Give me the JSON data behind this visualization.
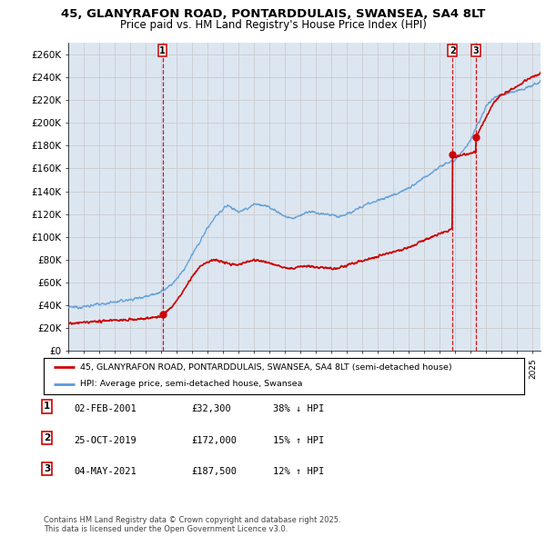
{
  "title_line1": "45, GLANYRAFON ROAD, PONTARDDULAIS, SWANSEA, SA4 8LT",
  "title_line2": "Price paid vs. HM Land Registry's House Price Index (HPI)",
  "ylabel_ticks": [
    "£0",
    "£20K",
    "£40K",
    "£60K",
    "£80K",
    "£100K",
    "£120K",
    "£140K",
    "£160K",
    "£180K",
    "£200K",
    "£220K",
    "£240K",
    "£260K"
  ],
  "ytick_values": [
    0,
    20000,
    40000,
    60000,
    80000,
    100000,
    120000,
    140000,
    160000,
    180000,
    200000,
    220000,
    240000,
    260000
  ],
  "ylim": [
    0,
    270000
  ],
  "hpi_color": "#5b9bd5",
  "price_color": "#cc0000",
  "event_color": "#cc0000",
  "grid_color": "#cccccc",
  "chart_bg": "#dce6f1",
  "bg_color": "#ffffff",
  "legend_label_price": "45, GLANYRAFON ROAD, PONTARDDULAIS, SWANSEA, SA4 8LT (semi-detached house)",
  "legend_label_hpi": "HPI: Average price, semi-detached house, Swansea",
  "sales": [
    {
      "label": "1",
      "date_x": 2001.09,
      "price": 32300,
      "pct": "38%",
      "dir": "↓",
      "date_str": "02-FEB-2001",
      "price_str": "£32,300"
    },
    {
      "label": "2",
      "date_x": 2019.81,
      "price": 172000,
      "pct": "15%",
      "dir": "↑",
      "date_str": "25-OCT-2019",
      "price_str": "£172,000"
    },
    {
      "label": "3",
      "date_x": 2021.33,
      "price": 187500,
      "pct": "12%",
      "dir": "↑",
      "date_str": "04-MAY-2021",
      "price_str": "£187,500"
    }
  ],
  "footer": "Contains HM Land Registry data © Crown copyright and database right 2025.\nThis data is licensed under the Open Government Licence v3.0.",
  "xmin": 1995.0,
  "xmax": 2025.5
}
